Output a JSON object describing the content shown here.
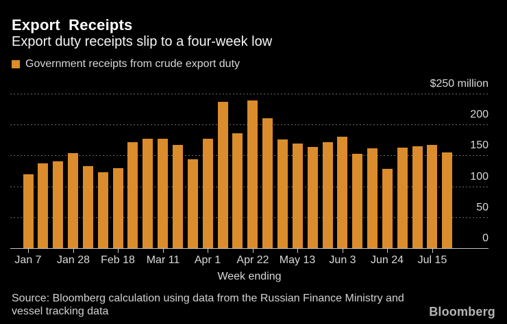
{
  "header": {
    "title": "Export Receipts",
    "subtitle": "Export duty receipts slip to a four-week low",
    "legend": {
      "label": "Government receipts from crude export duty",
      "swatch_color": "#DB8C2C"
    }
  },
  "chart_data": {
    "type": "bar",
    "title": "Export Receipts",
    "subtitle": "Export duty receipts slip to a four-week low",
    "series_name": "Government receipts from crude export duty",
    "unit_label": "$250 million",
    "xlabel": "Week ending",
    "ylabel": "",
    "ylim": [
      0,
      250
    ],
    "yticks": [
      0,
      50,
      100,
      150,
      200,
      250
    ],
    "grid": "dotted-horizontal",
    "legend_position": "top-left",
    "y_axis_labels_position": "right",
    "bar_color": "#DB8C2C",
    "categories": [
      "Jan 7",
      "Jan 14",
      "Jan 21",
      "Jan 28",
      "Feb 4",
      "Feb 11",
      "Feb 18",
      "Feb 25",
      "Mar 4",
      "Mar 11",
      "Mar 18",
      "Mar 25",
      "Apr 1",
      "Apr 8",
      "Apr 15",
      "Apr 22",
      "Apr 29",
      "May 6",
      "May 13",
      "May 20",
      "May 27",
      "Jun 3",
      "Jun 10",
      "Jun 17",
      "Jun 24",
      "Jul 1",
      "Jul 8",
      "Jul 15",
      "Jul 22"
    ],
    "values": [
      119,
      137,
      141,
      154,
      133,
      123,
      129,
      172,
      177,
      177,
      167,
      144,
      177,
      237,
      186,
      239,
      210,
      176,
      169,
      164,
      172,
      180,
      153,
      162,
      128,
      163,
      165,
      167,
      155
    ],
    "x_tick_every": 3,
    "x_tick_labels": [
      "Jan 7",
      "Jan 28",
      "Feb 18",
      "Mar 11",
      "Apr 1",
      "Apr 22",
      "May 13",
      "Jun 3",
      "Jun 24",
      "Jul 15"
    ]
  },
  "footer": {
    "source_line1": "Source: Bloomberg calculation using data from the Russian Finance Ministry and",
    "source_line2": "vessel tracking data",
    "brand": "Bloomberg"
  }
}
